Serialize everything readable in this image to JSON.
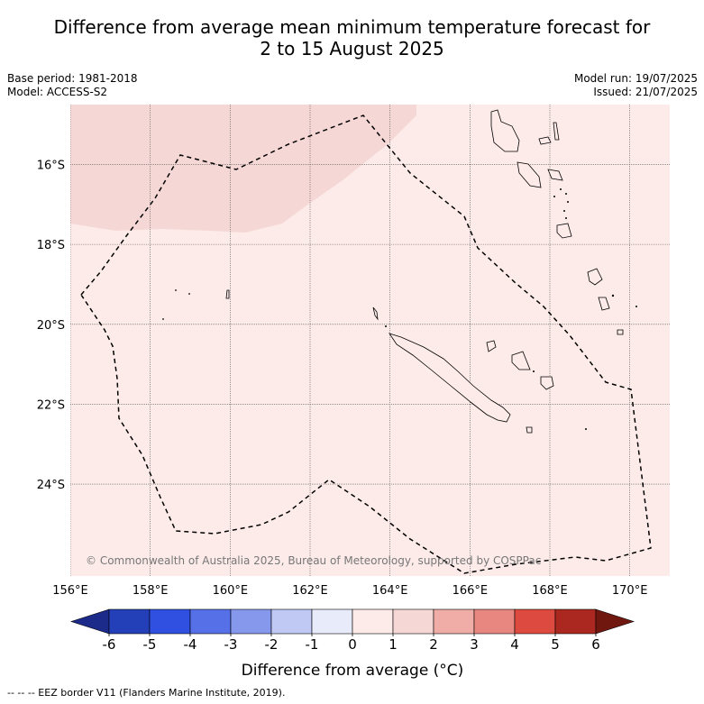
{
  "title": {
    "line1": "Difference from average mean minimum temperature forecast for",
    "line2": "2 to 15 August 2025"
  },
  "meta_left": {
    "base_period": "Base period: 1981-2018",
    "model": "Model: ACCESS-S2"
  },
  "meta_right": {
    "model_run": "Model run: 19/07/2025",
    "issued": "Issued: 21/07/2025"
  },
  "map": {
    "lon_range": [
      156,
      171
    ],
    "lat_range": [
      -26.3,
      -14.5
    ],
    "lon_ticks": [
      "156°E",
      "158°E",
      "160°E",
      "162°E",
      "164°E",
      "166°E",
      "168°E",
      "170°E"
    ],
    "lat_ticks": [
      "16°S",
      "18°S",
      "20°S",
      "22°S",
      "24°S"
    ],
    "gridlines": true,
    "background_class_color": "#fcebe9",
    "warm_area_color": "#f5d8d5",
    "copyright": "© Commonwealth of Australia 2025, Bureau of Meteorology, supported by COSPPac"
  },
  "colorbar": {
    "label": "Difference from average (°C)",
    "ticks": [
      "-6",
      "-5",
      "-4",
      "-3",
      "-2",
      "-1",
      "0",
      "1",
      "2",
      "3",
      "4",
      "5",
      "6"
    ],
    "colors": [
      "#1c2a8a",
      "#2340b8",
      "#2f50e0",
      "#5670e8",
      "#8598ec",
      "#c0c8f4",
      "#e8ecfa",
      "#fcebe9",
      "#f5d8d5",
      "#f0aca7",
      "#e8877f",
      "#dc4a40",
      "#ab2820",
      "#701810"
    ]
  },
  "footer": "--  --  -- EEZ border V11 (Flanders Marine Institute, 2019)."
}
